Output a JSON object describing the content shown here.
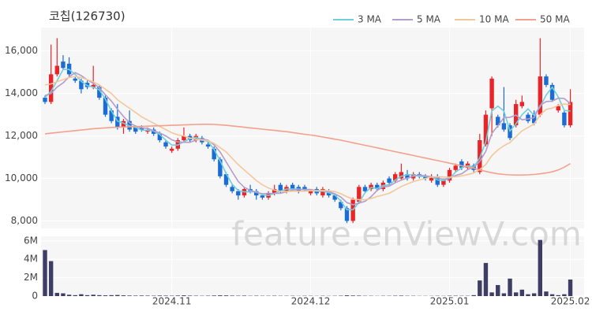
{
  "chart_data": {
    "type": "candlestick",
    "title": "코칩(126730)",
    "watermark": "feature.enViewV.com",
    "categories": [
      null,
      null,
      null,
      null,
      null,
      null,
      null,
      null,
      null,
      null,
      null,
      null,
      null,
      null,
      null,
      null,
      null,
      null,
      null,
      null,
      null,
      "2024.11",
      null,
      null,
      null,
      null,
      null,
      null,
      null,
      null,
      null,
      null,
      null,
      null,
      null,
      null,
      null,
      null,
      null,
      null,
      null,
      null,
      null,
      null,
      "2024.12",
      null,
      null,
      null,
      null,
      null,
      null,
      null,
      null,
      null,
      null,
      null,
      null,
      null,
      null,
      null,
      null,
      null,
      null,
      null,
      null,
      null,
      null,
      "2025.01",
      null,
      null,
      null,
      null,
      null,
      null,
      null,
      null,
      null,
      null,
      null,
      null,
      null,
      null,
      null,
      null,
      null,
      null,
      null,
      "2025.02"
    ],
    "open": [
      13800,
      13600,
      14900,
      15500,
      15400,
      14700,
      14600,
      14500,
      14300,
      14300,
      13800,
      13200,
      12900,
      12400,
      12700,
      12400,
      12400,
      12200,
      12300,
      12100,
      11700,
      11300,
      11400,
      11800,
      12000,
      11800,
      11900,
      11600,
      11400,
      10900,
      10200,
      9600,
      9400,
      9200,
      9500,
      9400,
      9200,
      9100,
      9300,
      9700,
      9400,
      9700,
      9600,
      9600,
      9300,
      9500,
      9200,
      9400,
      9200,
      8900,
      8600,
      8000,
      8900,
      9600,
      9500,
      9700,
      9500,
      10000,
      9900,
      10000,
      10200,
      10000,
      10200,
      10100,
      9900,
      10100,
      9700,
      9900,
      10400,
      10800,
      10500,
      10600,
      10300,
      11600,
      13300,
      12900,
      12600,
      12500,
      12500,
      13400,
      13000,
      13000,
      13000,
      14800,
      14400,
      13200,
      13100,
      12500
    ],
    "high": [
      13900,
      16300,
      16600,
      15800,
      15700,
      14800,
      14700,
      14600,
      15300,
      14400,
      13900,
      13300,
      13500,
      12800,
      13200,
      12500,
      12500,
      12400,
      12400,
      12200,
      11800,
      11500,
      11900,
      12400,
      12100,
      12100,
      12000,
      11700,
      11500,
      11000,
      10300,
      9700,
      9500,
      9600,
      9700,
      9500,
      9300,
      9400,
      9700,
      9800,
      9700,
      9800,
      9700,
      9700,
      9500,
      9600,
      9600,
      9500,
      9300,
      9000,
      8700,
      9100,
      9700,
      9700,
      9800,
      9800,
      9900,
      10100,
      10300,
      10700,
      10400,
      10300,
      10300,
      10200,
      10200,
      10200,
      10000,
      10500,
      10700,
      10900,
      10800,
      10700,
      12100,
      13200,
      14800,
      13000,
      14300,
      12600,
      13700,
      13900,
      13100,
      13200,
      16600,
      14900,
      14500,
      13500,
      13200,
      14200
    ],
    "low": [
      13500,
      13500,
      14800,
      15100,
      14800,
      14500,
      14000,
      14200,
      14200,
      13700,
      12900,
      12600,
      12300,
      12100,
      12200,
      12100,
      12200,
      12100,
      12000,
      11700,
      11400,
      11200,
      11300,
      11700,
      11700,
      11700,
      11600,
      11400,
      10800,
      10000,
      9600,
      9300,
      9000,
      9100,
      9300,
      9000,
      9000,
      9000,
      9200,
      9300,
      9300,
      9400,
      9300,
      9400,
      9200,
      9200,
      9100,
      9100,
      8900,
      8500,
      7900,
      7900,
      8800,
      9300,
      9400,
      9400,
      9400,
      9700,
      9800,
      9900,
      9900,
      9900,
      10000,
      9900,
      9800,
      9600,
      9600,
      9800,
      10300,
      10400,
      10400,
      10300,
      10200,
      11500,
      12000,
      12400,
      12200,
      11800,
      12400,
      13300,
      12600,
      12500,
      12900,
      14300,
      13600,
      13100,
      12400,
      12400
    ],
    "close": [
      13600,
      14900,
      15300,
      15200,
      14900,
      14600,
      14200,
      14300,
      14400,
      13800,
      13000,
      12700,
      12400,
      12700,
      12300,
      12200,
      12300,
      12300,
      12100,
      11800,
      11500,
      11400,
      11800,
      12000,
      11800,
      12000,
      11700,
      11500,
      10900,
      10100,
      9700,
      9400,
      9200,
      9500,
      9400,
      9200,
      9100,
      9300,
      9500,
      9400,
      9600,
      9500,
      9400,
      9500,
      9400,
      9300,
      9500,
      9200,
      9000,
      8600,
      8000,
      9000,
      9600,
      9400,
      9700,
      9500,
      9800,
      9800,
      10200,
      10300,
      10000,
      10200,
      10100,
      10000,
      10100,
      9700,
      9900,
      10400,
      10600,
      10500,
      10700,
      10400,
      11800,
      13000,
      14700,
      12500,
      12300,
      11900,
      13500,
      13600,
      12700,
      12600,
      14800,
      14400,
      13700,
      13400,
      12500,
      13600
    ],
    "up_color": "#e8262a",
    "down_color": "#1a6cd6",
    "series": [
      {
        "name": "3 MA",
        "color": "#6fd0dc",
        "values": [
          13800,
          14100,
          14600,
          15130,
          15130,
          14900,
          14570,
          14370,
          14300,
          14170,
          13730,
          13170,
          12700,
          12600,
          12470,
          12400,
          12270,
          12270,
          12230,
          12070,
          11800,
          11570,
          11570,
          11730,
          11870,
          11930,
          11830,
          11730,
          11370,
          10830,
          10230,
          9730,
          9430,
          9370,
          9370,
          9370,
          9230,
          9200,
          9300,
          9400,
          9500,
          9500,
          9500,
          9470,
          9430,
          9400,
          9400,
          9330,
          9230,
          8930,
          8530,
          8530,
          8870,
          9330,
          9570,
          9530,
          9670,
          9700,
          9930,
          10100,
          10170,
          10170,
          10100,
          10100,
          10070,
          9930,
          9900,
          10000,
          10300,
          10500,
          10600,
          10530,
          10970,
          11730,
          13170,
          13400,
          13170,
          12230,
          12570,
          13000,
          13270,
          12970,
          13370,
          13930,
          14300,
          13830,
          13200,
          13170
        ]
      },
      {
        "name": "5 MA",
        "color": "#b49ccc",
        "values": [
          13900,
          14000,
          14300,
          14500,
          14780,
          14980,
          14840,
          14640,
          14480,
          14260,
          13940,
          13640,
          13260,
          12920,
          12620,
          12460,
          12380,
          12360,
          12240,
          12140,
          12000,
          11820,
          11720,
          11700,
          11700,
          11800,
          11860,
          11800,
          11580,
          11240,
          10780,
          10320,
          9860,
          9580,
          9440,
          9340,
          9280,
          9300,
          9300,
          9300,
          9380,
          9460,
          9480,
          9480,
          9480,
          9420,
          9420,
          9380,
          9280,
          9120,
          8860,
          8760,
          8840,
          8920,
          9140,
          9440,
          9600,
          9640,
          9800,
          9920,
          10020,
          10100,
          10160,
          10120,
          10080,
          10020,
          9960,
          10020,
          10140,
          10220,
          10420,
          10520,
          10800,
          11280,
          12120,
          12480,
          12860,
          12880,
          12980,
          12760,
          12800,
          12860,
          13440,
          13620,
          13640,
          13780,
          13760,
          13520
        ]
      },
      {
        "name": "10 MA",
        "color": "#f3c79b",
        "values": [
          14400,
          14450,
          14550,
          14650,
          14750,
          14800,
          14750,
          14650,
          14550,
          14400,
          14200,
          14000,
          13700,
          13500,
          13300,
          13100,
          12900,
          12750,
          12600,
          12450,
          12300,
          12150,
          12050,
          12000,
          11900,
          11850,
          11800,
          11780,
          11650,
          11450,
          11250,
          10950,
          10650,
          10400,
          10150,
          9900,
          9700,
          9550,
          9450,
          9400,
          9380,
          9400,
          9400,
          9400,
          9420,
          9430,
          9440,
          9420,
          9380,
          9280,
          9140,
          9030,
          9000,
          9000,
          9050,
          9150,
          9220,
          9300,
          9460,
          9620,
          9740,
          9850,
          9930,
          10000,
          10070,
          10080,
          10070,
          10060,
          10080,
          10120,
          10180,
          10260,
          10420,
          10650,
          11070,
          11340,
          11540,
          11690,
          11970,
          12240,
          12400,
          12560,
          12990,
          13250,
          13310,
          13440,
          13500,
          13480
        ]
      },
      {
        "name": "50 MA",
        "color": "#f3a08c",
        "values": [
          12100,
          12130,
          12160,
          12190,
          12220,
          12250,
          12280,
          12310,
          12340,
          12360,
          12380,
          12400,
          12410,
          12420,
          12430,
          12440,
          12450,
          12460,
          12470,
          12480,
          12490,
          12500,
          12510,
          12520,
          12530,
          12540,
          12550,
          12550,
          12540,
          12520,
          12500,
          12470,
          12440,
          12410,
          12380,
          12350,
          12320,
          12290,
          12260,
          12230,
          12200,
          12160,
          12120,
          12080,
          12040,
          12000,
          11950,
          11900,
          11850,
          11800,
          11740,
          11680,
          11620,
          11560,
          11500,
          11440,
          11380,
          11320,
          11260,
          11200,
          11140,
          11080,
          11020,
          10960,
          10900,
          10840,
          10780,
          10720,
          10660,
          10600,
          10540,
          10480,
          10400,
          10330,
          10270,
          10220,
          10190,
          10170,
          10160,
          10160,
          10170,
          10190,
          10220,
          10260,
          10310,
          10400,
          10530,
          10700
        ]
      }
    ],
    "ylim": [
      7650,
      17100
    ],
    "yticks": [
      {
        "value": 8000,
        "label": "8,000"
      },
      {
        "value": 10000,
        "label": "10,000"
      },
      {
        "value": 12000,
        "label": "12,000"
      },
      {
        "value": 14000,
        "label": "14,000"
      },
      {
        "value": 16000,
        "label": "16,000"
      }
    ],
    "grid": true,
    "legend": "top-right",
    "volume": {
      "color": "#3e3d66",
      "values": [
        5000000,
        3800000,
        350000,
        300000,
        150000,
        100000,
        200000,
        100000,
        150000,
        100000,
        80000,
        100000,
        120000,
        80000,
        60000,
        50000,
        60000,
        50000,
        40000,
        60000,
        50000,
        40000,
        60000,
        80000,
        50000,
        40000,
        30000,
        40000,
        60000,
        80000,
        70000,
        50000,
        40000,
        50000,
        30000,
        40000,
        30000,
        30000,
        40000,
        30000,
        30000,
        30000,
        20000,
        30000,
        30000,
        20000,
        30000,
        20000,
        30000,
        40000,
        80000,
        60000,
        50000,
        30000,
        30000,
        20000,
        30000,
        30000,
        40000,
        50000,
        30000,
        30000,
        20000,
        20000,
        20000,
        30000,
        20000,
        40000,
        40000,
        30000,
        30000,
        100000,
        1700000,
        3600000,
        400000,
        1200000,
        300000,
        1900000,
        400000,
        700000,
        200000,
        300000,
        6100000,
        500000,
        200000,
        100000,
        200000,
        1800000
      ],
      "ylim": [
        0,
        6500000
      ],
      "yticks": [
        0,
        {
          "value": 2000000,
          "label": "2M"
        },
        {
          "value": 4000000,
          "label": "4M"
        },
        {
          "value": 6000000,
          "label": "6M"
        }
      ]
    }
  }
}
